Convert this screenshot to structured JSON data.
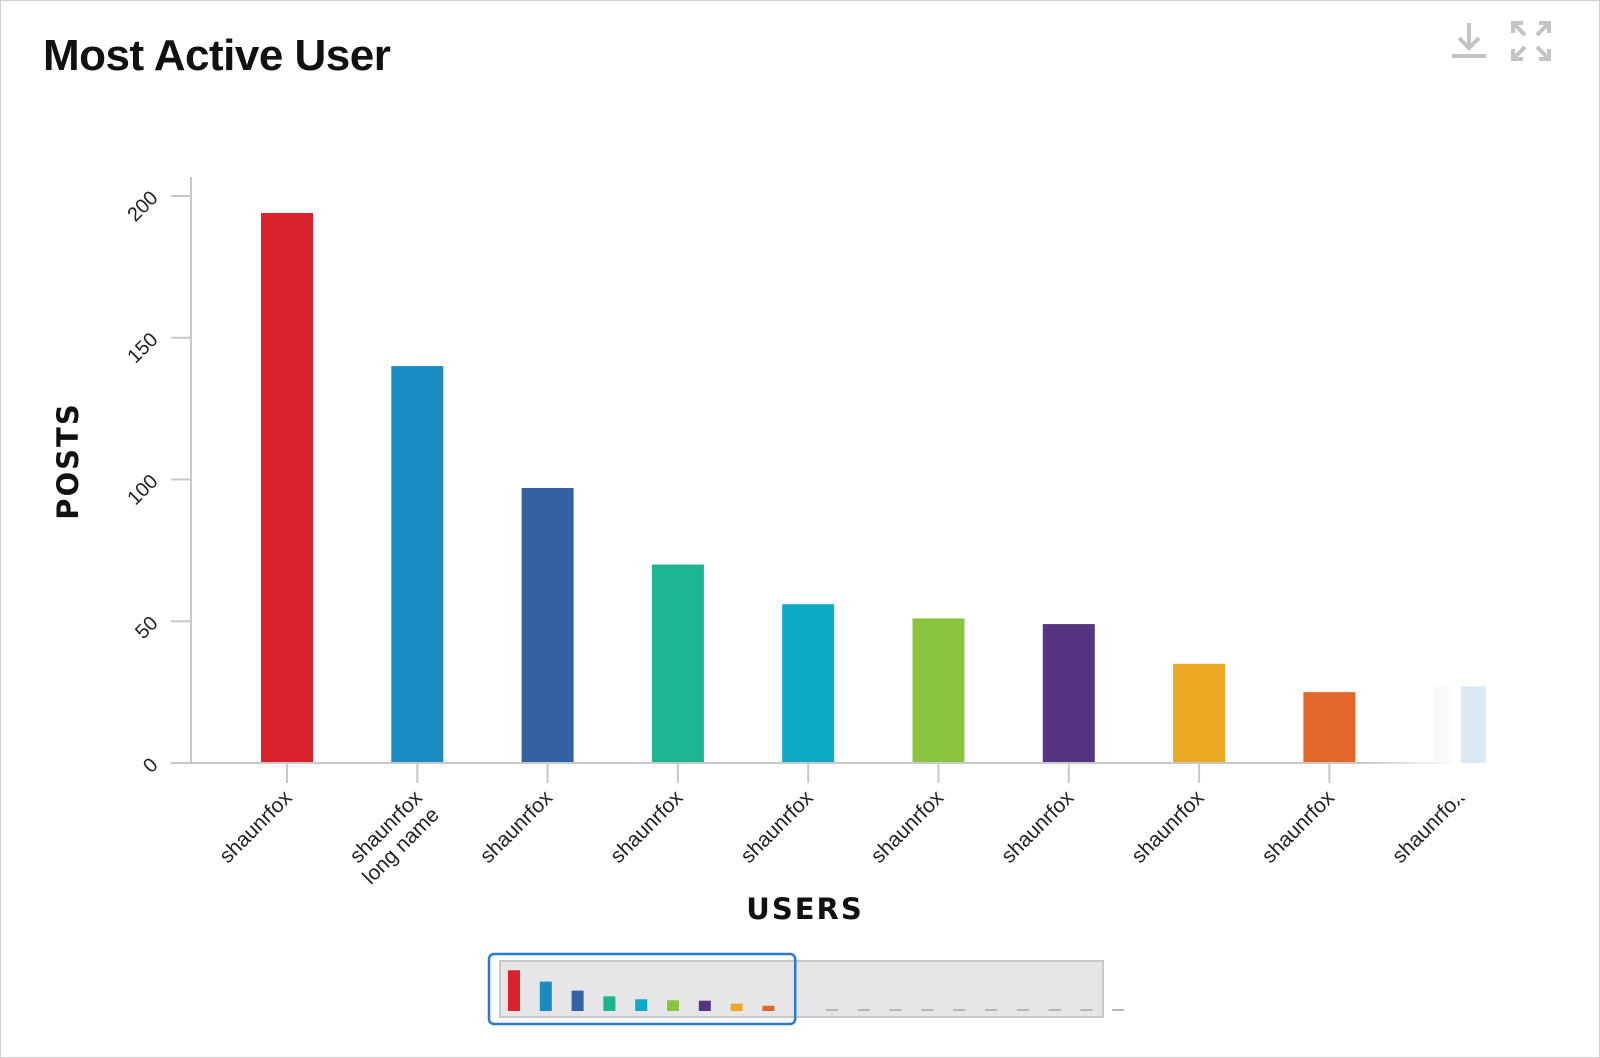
{
  "header": {
    "title": "Most Active User",
    "download_icon": "download-icon",
    "fullscreen_icon": "expand-icon"
  },
  "colors": {
    "axis": "#c8c8c8",
    "navigator_window": "#e6e6e8",
    "navigator_border": "#2a7ad0",
    "icon": "#c4c4c4"
  },
  "chart_data": {
    "type": "bar",
    "title": "Most Active User",
    "xlabel": "USERS",
    "ylabel": "POSTS",
    "ylim": [
      0,
      200
    ],
    "yticks": [
      0,
      50,
      100,
      150,
      200
    ],
    "grid": false,
    "categories": [
      "shaunrfox",
      "shaunrfox\nlong name",
      "shaunrfox",
      "shaunrfox",
      "shaunrfox",
      "shaunrfox",
      "shaunrfox",
      "shaunrfox",
      "shaunrfox",
      "shaunrfox"
    ],
    "values": [
      194,
      140,
      97,
      70,
      56,
      51,
      49,
      35,
      25,
      27
    ],
    "bar_colors": [
      "#d9222c",
      "#1b8cc1",
      "#3361a3",
      "#1bb592",
      "#0ea9c7",
      "#8bc43f",
      "#553581",
      "#eca822",
      "#e2672a",
      "#dbe9f3"
    ],
    "faded_categories": [
      9
    ],
    "navigator": {
      "values": [
        194,
        140,
        97,
        70,
        56,
        51,
        49,
        35,
        25,
        27,
        3,
        3,
        3,
        3,
        3,
        3,
        3,
        3,
        3,
        3
      ],
      "visible_range": [
        0,
        9
      ]
    }
  }
}
